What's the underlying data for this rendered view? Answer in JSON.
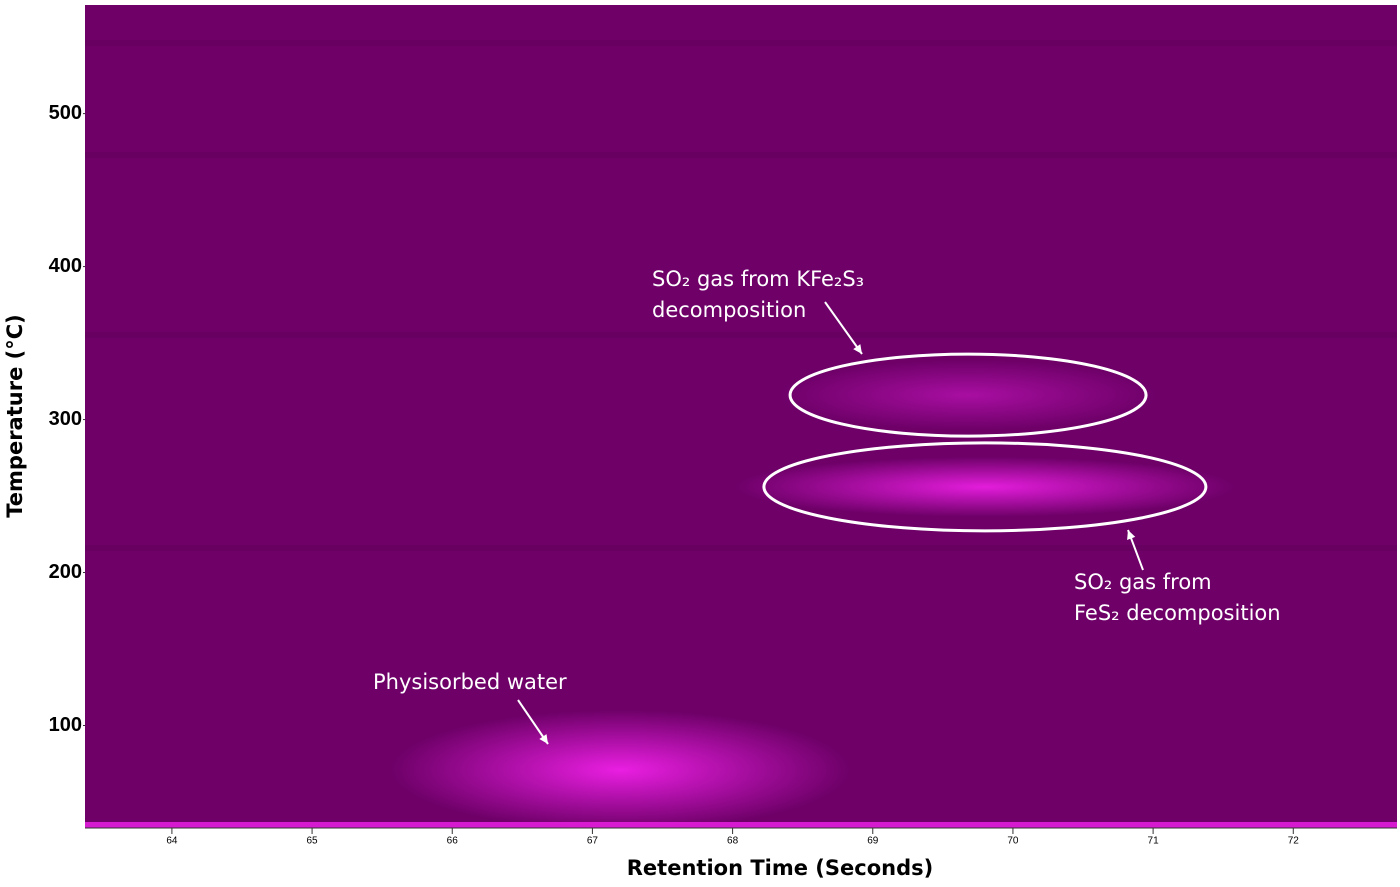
{
  "chart_data": {
    "type": "heatmap",
    "xlabel": "Retention Time (Seconds)",
    "ylabel": "Temperature (°C)",
    "xlim": [
      63.38,
      72.74
    ],
    "ylim": [
      33,
      571
    ],
    "xticks": [
      64,
      65,
      66,
      67,
      68,
      69,
      70,
      71,
      72
    ],
    "yticks": [
      100,
      200,
      300,
      400,
      500
    ],
    "background_color": "#6e0068",
    "peak_color": "#f020e8",
    "peaks": [
      {
        "x": 67.2,
        "y": 71
      },
      {
        "x": 69.8,
        "y": 256
      },
      {
        "x": 69.68,
        "y": 316
      }
    ],
    "annotations": [
      {
        "lines": [
          "Physisorbed water"
        ]
      },
      {
        "lines": [
          "SO₂ gas from",
          "FeS₂ decomposition"
        ]
      },
      {
        "lines": [
          "SO₂ gas from KFe₂S₃",
          "decomposition"
        ]
      }
    ]
  }
}
